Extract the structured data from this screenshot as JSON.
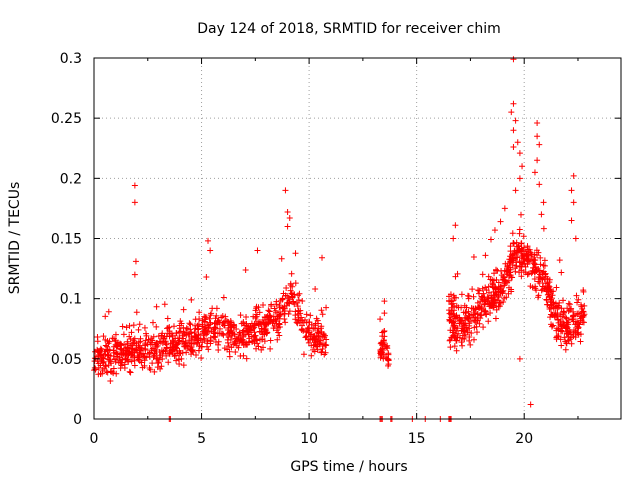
{
  "chart_data": {
    "type": "scatter",
    "title": "Day 124 of 2018, SRMTID for receiver chim",
    "xlabel": "GPS time / hours",
    "ylabel": "SRMTID / TECUs",
    "xlim": [
      0,
      24.5
    ],
    "ylim": [
      0,
      0.3
    ],
    "x_ticks": [
      0,
      5,
      10,
      15,
      20
    ],
    "x_tick_labels": [
      "0",
      "5",
      "10",
      "15",
      "20"
    ],
    "y_ticks": [
      0,
      0.05,
      0.1,
      0.15,
      0.2,
      0.25,
      0.3
    ],
    "y_tick_labels": [
      "0",
      "0.05",
      "0.1",
      "0.15",
      "0.2",
      "0.25",
      "0.3"
    ],
    "grid": true,
    "marker": "+",
    "color": "#ff0000",
    "series": [
      {
        "name": "SRMTID",
        "segments": [
          {
            "x_range": [
              0.0,
              10.8
            ],
            "baseline": 0.06,
            "spread": 0.022,
            "count": 900,
            "trend": [
              [
                0,
                0.05
              ],
              [
                2,
                0.058
              ],
              [
                4,
                0.062
              ],
              [
                5.5,
                0.075
              ],
              [
                7,
                0.068
              ],
              [
                8.5,
                0.085
              ],
              [
                9.2,
                0.1
              ],
              [
                10,
                0.07
              ],
              [
                10.8,
                0.065
              ]
            ]
          },
          {
            "x_range": [
              13.3,
              13.7
            ],
            "baseline": 0.06,
            "spread": 0.015,
            "count": 45,
            "trend": [
              [
                13.3,
                0.055
              ],
              [
                13.5,
                0.065
              ],
              [
                13.7,
                0.05
              ]
            ]
          },
          {
            "x_range": [
              16.5,
              22.8
            ],
            "baseline": 0.09,
            "spread": 0.025,
            "count": 650,
            "trend": [
              [
                16.5,
                0.085
              ],
              [
                17.2,
                0.075
              ],
              [
                18,
                0.095
              ],
              [
                19,
                0.11
              ],
              [
                19.7,
                0.14
              ],
              [
                20.3,
                0.13
              ],
              [
                20.8,
                0.12
              ],
              [
                21.5,
                0.085
              ],
              [
                22,
                0.075
              ],
              [
                22.8,
                0.085
              ]
            ]
          }
        ],
        "notable_points": [
          {
            "x": 1.9,
            "y": 0.194
          },
          {
            "x": 1.9,
            "y": 0.18
          },
          {
            "x": 1.95,
            "y": 0.131
          },
          {
            "x": 1.9,
            "y": 0.12
          },
          {
            "x": 5.3,
            "y": 0.148
          },
          {
            "x": 5.4,
            "y": 0.14
          },
          {
            "x": 7.6,
            "y": 0.14
          },
          {
            "x": 8.9,
            "y": 0.19
          },
          {
            "x": 9.0,
            "y": 0.172
          },
          {
            "x": 9.1,
            "y": 0.167
          },
          {
            "x": 9.0,
            "y": 0.16
          },
          {
            "x": 10.6,
            "y": 0.134
          },
          {
            "x": 13.5,
            "y": 0.098
          },
          {
            "x": 13.5,
            "y": 0.088
          },
          {
            "x": 13.3,
            "y": 0.083
          },
          {
            "x": 16.8,
            "y": 0.161
          },
          {
            "x": 16.7,
            "y": 0.15
          },
          {
            "x": 18.9,
            "y": 0.164
          },
          {
            "x": 19.1,
            "y": 0.175
          },
          {
            "x": 19.5,
            "y": 0.299
          },
          {
            "x": 19.5,
            "y": 0.262
          },
          {
            "x": 19.4,
            "y": 0.255
          },
          {
            "x": 19.6,
            "y": 0.248
          },
          {
            "x": 19.5,
            "y": 0.24
          },
          {
            "x": 19.5,
            "y": 0.226
          },
          {
            "x": 19.7,
            "y": 0.23
          },
          {
            "x": 19.8,
            "y": 0.221
          },
          {
            "x": 19.9,
            "y": 0.21
          },
          {
            "x": 19.8,
            "y": 0.2
          },
          {
            "x": 19.6,
            "y": 0.19
          },
          {
            "x": 20.6,
            "y": 0.246
          },
          {
            "x": 20.6,
            "y": 0.235
          },
          {
            "x": 20.7,
            "y": 0.228
          },
          {
            "x": 20.6,
            "y": 0.215
          },
          {
            "x": 20.5,
            "y": 0.205
          },
          {
            "x": 20.7,
            "y": 0.195
          },
          {
            "x": 20.9,
            "y": 0.18
          },
          {
            "x": 20.8,
            "y": 0.17
          },
          {
            "x": 22.3,
            "y": 0.202
          },
          {
            "x": 22.2,
            "y": 0.19
          },
          {
            "x": 22.3,
            "y": 0.18
          },
          {
            "x": 22.2,
            "y": 0.165
          },
          {
            "x": 22.4,
            "y": 0.15
          },
          {
            "x": 20.3,
            "y": 0.012
          },
          {
            "x": 19.8,
            "y": 0.05
          }
        ],
        "zero_points": [
          3.5,
          3.55,
          13.3,
          13.35,
          13.4,
          13.8,
          13.85,
          14.8,
          15.4,
          16.1,
          16.5,
          16.55,
          16.6
        ]
      }
    ]
  }
}
